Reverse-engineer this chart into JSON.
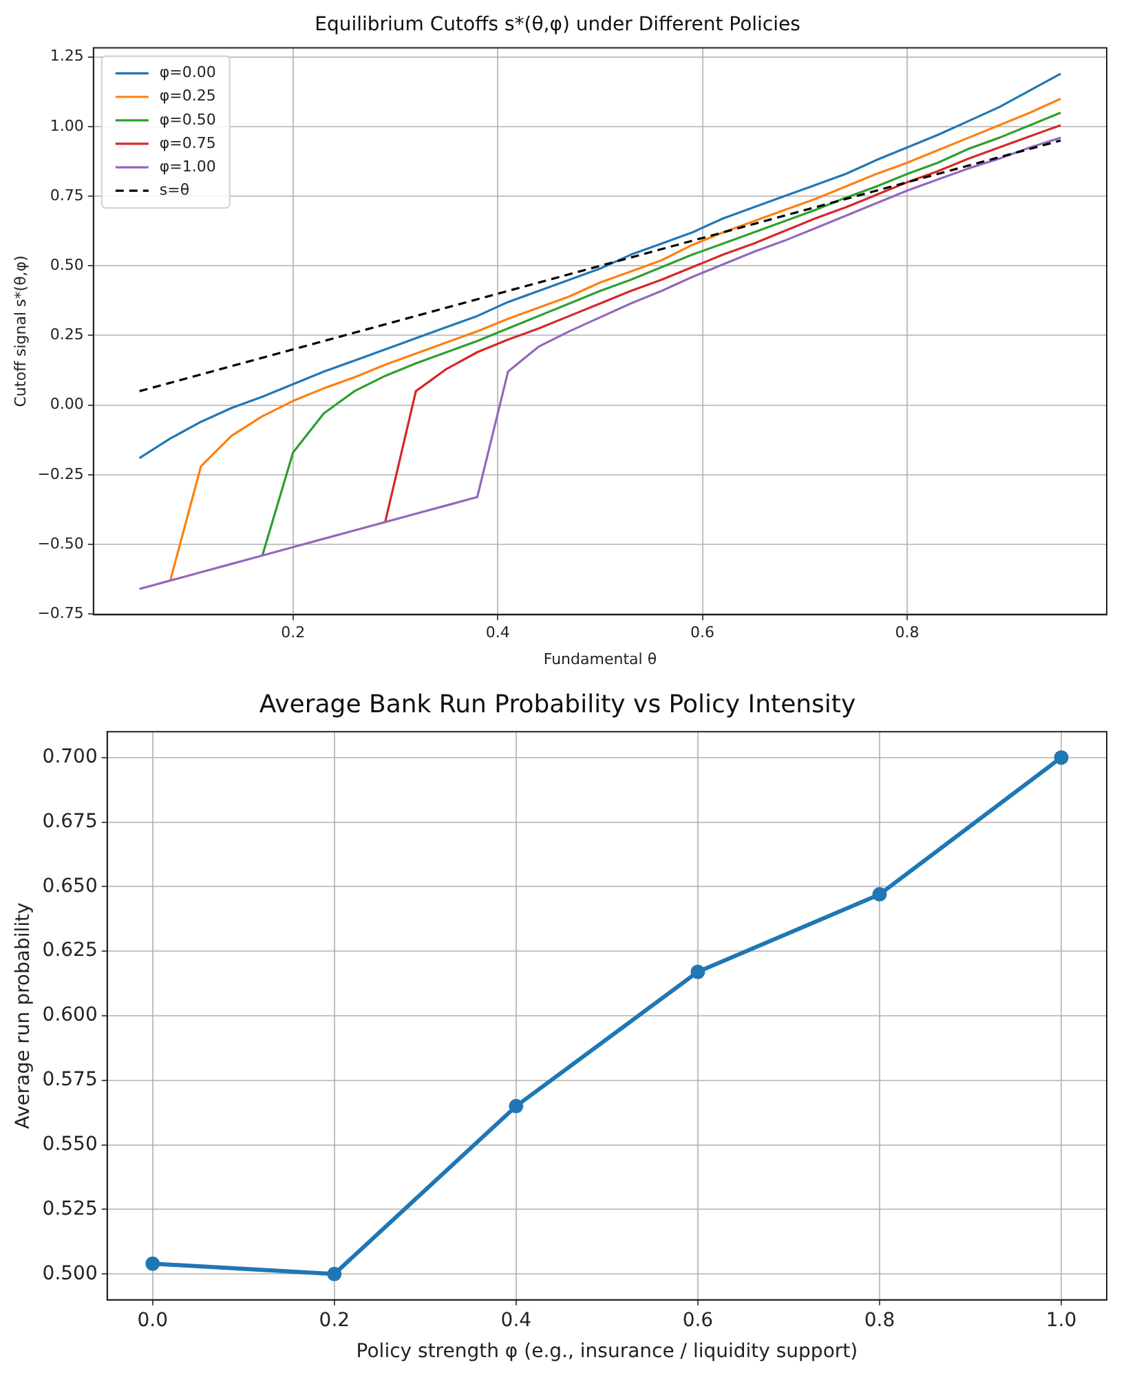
{
  "chart_data": [
    {
      "type": "line",
      "title": "Equilibrium Cutoffs s*(θ,φ) under Different Policies",
      "xlabel": "Fundamental θ",
      "ylabel": "Cutoff signal s*(θ,φ)",
      "x": [
        0.05,
        0.08,
        0.11,
        0.14,
        0.17,
        0.2,
        0.23,
        0.26,
        0.29,
        0.32,
        0.35,
        0.38,
        0.41,
        0.44,
        0.47,
        0.5,
        0.53,
        0.56,
        0.59,
        0.62,
        0.65,
        0.68,
        0.71,
        0.74,
        0.77,
        0.8,
        0.83,
        0.86,
        0.89,
        0.92,
        0.95
      ],
      "series": [
        {
          "name": "φ=0.00",
          "color": "#1f77b4",
          "values": [
            -0.19,
            -0.12,
            -0.06,
            -0.01,
            0.03,
            0.075,
            0.12,
            0.16,
            0.2,
            0.24,
            0.28,
            0.32,
            0.37,
            0.41,
            0.45,
            0.49,
            0.54,
            0.58,
            0.62,
            0.67,
            0.71,
            0.75,
            0.79,
            0.83,
            0.88,
            0.925,
            0.97,
            1.02,
            1.07,
            1.13,
            1.19
          ]
        },
        {
          "name": "φ=0.25",
          "color": "#ff7f0e",
          "values": [
            null,
            -0.63,
            -0.22,
            -0.11,
            -0.04,
            0.015,
            0.06,
            0.1,
            0.145,
            0.185,
            0.225,
            0.265,
            0.31,
            0.35,
            0.39,
            0.44,
            0.48,
            0.52,
            0.575,
            0.62,
            0.66,
            0.7,
            0.74,
            0.785,
            0.83,
            0.87,
            0.915,
            0.96,
            1.005,
            1.05,
            1.1
          ]
        },
        {
          "name": "φ=0.50",
          "color": "#2ca02c",
          "values": [
            null,
            null,
            null,
            null,
            -0.54,
            -0.17,
            -0.03,
            0.05,
            0.105,
            0.15,
            0.19,
            0.23,
            0.275,
            0.32,
            0.365,
            0.41,
            0.45,
            0.495,
            0.54,
            0.58,
            0.62,
            0.66,
            0.7,
            0.745,
            0.785,
            0.83,
            0.87,
            0.92,
            0.96,
            1.005,
            1.05
          ]
        },
        {
          "name": "φ=0.75",
          "color": "#d62728",
          "values": [
            null,
            null,
            null,
            null,
            null,
            null,
            null,
            null,
            -0.42,
            0.05,
            0.13,
            0.19,
            0.235,
            0.275,
            0.32,
            0.365,
            0.41,
            0.45,
            0.495,
            0.54,
            0.58,
            0.625,
            0.67,
            0.71,
            0.755,
            0.8,
            0.84,
            0.885,
            0.925,
            0.965,
            1.005
          ]
        },
        {
          "name": "φ=1.00",
          "color": "#9467bd",
          "values": [
            -0.66,
            -0.63,
            -0.6,
            -0.57,
            -0.54,
            -0.51,
            -0.48,
            -0.45,
            -0.42,
            -0.39,
            -0.36,
            -0.33,
            0.12,
            0.21,
            0.265,
            0.315,
            0.365,
            0.41,
            0.46,
            0.505,
            0.55,
            0.59,
            0.635,
            0.68,
            0.725,
            0.77,
            0.81,
            0.85,
            0.885,
            0.925,
            0.96
          ]
        },
        {
          "name": "s=θ",
          "color": "#000000",
          "line_style": "dashed",
          "x": [
            0.05,
            0.95
          ],
          "values": [
            0.05,
            0.95
          ]
        }
      ],
      "xlim": [
        0.005,
        0.995
      ],
      "xticks": [
        0.2,
        0.4,
        0.6,
        0.8
      ],
      "ylim": [
        -0.7525,
        1.2825
      ],
      "yticks": [
        {
          "value": -0.75,
          "label": "−0.75"
        },
        {
          "value": -0.5,
          "label": "−0.50"
        },
        {
          "value": -0.25,
          "label": "−0.25"
        },
        {
          "value": 0,
          "label": "0.00"
        },
        {
          "value": 0.25,
          "label": "0.25"
        },
        {
          "value": 0.5,
          "label": "0.50"
        },
        {
          "value": 0.75,
          "label": "0.75"
        },
        {
          "value": 1,
          "label": "1.00"
        },
        {
          "value": 1.25,
          "label": "1.25"
        }
      ],
      "grid": true,
      "legend": "top left",
      "marker": "none",
      "line_style": "solid"
    },
    {
      "type": "line",
      "title": "Average Bank Run Probability vs Policy Intensity",
      "xlabel": "Policy strength φ (e.g., insurance / liquidity support)",
      "ylabel": "Average run probability",
      "x": [
        0,
        0.2,
        0.4,
        0.6,
        0.8,
        1.0
      ],
      "series": [
        {
          "color": "#1f77b4",
          "values": [
            0.504,
            0.5,
            0.565,
            0.617,
            0.647,
            0.7
          ]
        }
      ],
      "xlim": [
        -0.05,
        1.05
      ],
      "xticks": [
        {
          "value": 0,
          "label": "0.0"
        },
        {
          "value": 0.2,
          "label": "0.2"
        },
        {
          "value": 0.4,
          "label": "0.4"
        },
        {
          "value": 0.6,
          "label": "0.6"
        },
        {
          "value": 0.8,
          "label": "0.8"
        },
        {
          "value": 1,
          "label": "1.0"
        }
      ],
      "ylim": [
        0.49,
        0.71
      ],
      "yticks": [
        {
          "value": 0.5,
          "label": "0.500"
        },
        {
          "value": 0.525,
          "label": "0.525"
        },
        {
          "value": 0.55,
          "label": "0.550"
        },
        {
          "value": 0.575,
          "label": "0.575"
        },
        {
          "value": 0.6,
          "label": "0.600"
        },
        {
          "value": 0.625,
          "label": "0.625"
        },
        {
          "value": 0.65,
          "label": "0.650"
        },
        {
          "value": 0.675,
          "label": "0.675"
        },
        {
          "value": 0.7,
          "label": "0.700"
        }
      ],
      "grid": true,
      "marker": "circle",
      "line_style": "solid"
    }
  ]
}
